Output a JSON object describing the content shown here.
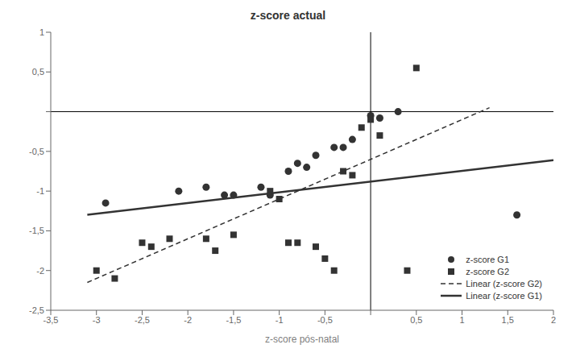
{
  "chart_data": {
    "type": "scatter",
    "title": "z-score actual",
    "xlabel": "z-score pós-natal",
    "xlim": [
      -3.5,
      2.0
    ],
    "ylim": [
      -2.5,
      1.0
    ],
    "xticks": [
      {
        "value": -3.5,
        "label": "-3,5"
      },
      -3,
      {
        "value": -2.5,
        "label": "-2,5"
      },
      -2,
      {
        "value": -1.5,
        "label": "-1,5"
      },
      -1,
      {
        "value": -0.5,
        "label": "-0,5"
      },
      {
        "value": 0,
        "label": ""
      },
      {
        "value": 0.5,
        "label": "0,5"
      },
      1,
      {
        "value": 1.5,
        "label": "1,5"
      },
      2
    ],
    "yticks": [
      {
        "value": -2.5,
        "label": "-2,5"
      },
      -2,
      {
        "value": -1.5,
        "label": "-1,5"
      },
      -1,
      {
        "value": -0.5,
        "label": "-0,5"
      },
      {
        "value": 0,
        "label": ""
      },
      {
        "value": 0.5,
        "label": "0,5"
      },
      1
    ],
    "legend": "lower right",
    "series": [
      {
        "name": "z-score G1",
        "type": "scatter",
        "marker": "circle",
        "color": "#333333",
        "x": [
          -2.9,
          -2.1,
          -1.8,
          -1.6,
          -1.5,
          -1.2,
          -1.1,
          -0.9,
          -0.8,
          -0.7,
          -0.6,
          -0.4,
          -0.3,
          -0.2,
          0.0,
          0.1,
          0.3,
          1.6
        ],
        "values": [
          -1.15,
          -1.0,
          -0.95,
          -1.05,
          -1.05,
          -0.95,
          -1.05,
          -0.75,
          -0.65,
          -0.7,
          -0.55,
          -0.45,
          -0.45,
          -0.35,
          -0.05,
          -0.08,
          0.0,
          -1.3
        ]
      },
      {
        "name": "z-score G2",
        "type": "scatter",
        "marker": "square",
        "color": "#333333",
        "x": [
          -3.0,
          -2.8,
          -2.5,
          -2.4,
          -2.2,
          -1.8,
          -1.7,
          -1.5,
          -1.1,
          -0.9,
          -0.8,
          -0.6,
          -0.5,
          -0.4,
          -0.3,
          -0.2,
          -0.1,
          0.0,
          0.1,
          0.4,
          0.5,
          -1.0
        ],
        "values": [
          -2.0,
          -2.1,
          -1.65,
          -1.7,
          -1.6,
          -1.6,
          -1.75,
          -1.55,
          -1.0,
          -1.65,
          -1.65,
          -1.7,
          -1.85,
          -2.0,
          -0.75,
          -0.8,
          -0.2,
          -0.1,
          -0.3,
          -2.0,
          0.55,
          -1.1
        ]
      },
      {
        "name": "Linear (z-score G2)",
        "type": "line",
        "line_style": "dashed",
        "color": "#333333",
        "x": [
          -3.1,
          1.3
        ],
        "values": [
          -2.15,
          0.05
        ]
      },
      {
        "name": "Linear (z-score G1)",
        "type": "line",
        "line_style": "solid",
        "color": "#333333",
        "x": [
          -3.1,
          2.0
        ],
        "values": [
          -1.2985,
          -0.61
        ]
      }
    ]
  }
}
